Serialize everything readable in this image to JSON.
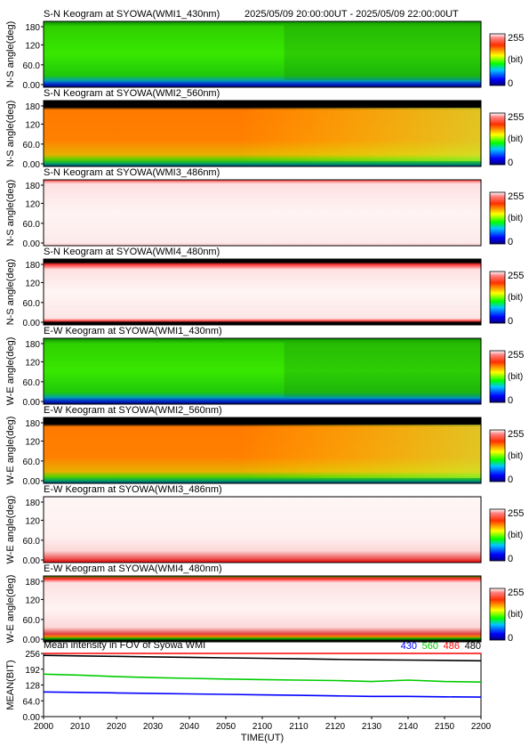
{
  "header": {
    "time_range": "2025/05/09 20:00:00UT - 2025/05/09 22:00:00UT"
  },
  "colorbar": {
    "max_label": "255",
    "unit_label": "(bit)",
    "min_label": "0"
  },
  "panels": [
    {
      "title": "S-N Keogram at SYOWA(WMI1_430nm)",
      "ylabel": "N-S angle(deg)",
      "scheme": "green",
      "yticks": [
        "180",
        "120",
        "60.0",
        "0.00"
      ]
    },
    {
      "title": "S-N Keogram at SYOWA(WMI2_560nm)",
      "ylabel": "N-S angle(deg)",
      "scheme": "orange",
      "yticks": [
        "180",
        "120",
        "60.0",
        "0.00"
      ]
    },
    {
      "title": "S-N Keogram at SYOWA(WMI3_486nm)",
      "ylabel": "N-S angle(deg)",
      "scheme": "pale",
      "yticks": [
        "180",
        "120",
        "60.0",
        "0.00"
      ]
    },
    {
      "title": "S-N Keogram at SYOWA(WMI4_480nm)",
      "ylabel": "N-S angle(deg)",
      "scheme": "pale_bands",
      "yticks": [
        "180",
        "120",
        "60.0",
        "0.00"
      ]
    },
    {
      "title": "E-W Keogram at SYOWA(WMI1_430nm)",
      "ylabel": "W-E angle(deg)",
      "scheme": "green",
      "yticks": [
        "180",
        "120",
        "60.0",
        "0.00"
      ]
    },
    {
      "title": "E-W Keogram at SYOWA(WMI2_560nm)",
      "ylabel": "W-E angle(deg)",
      "scheme": "orange",
      "yticks": [
        "180",
        "120",
        "60.0",
        "0.00"
      ]
    },
    {
      "title": "E-W Keogram at SYOWA(WMI3_486nm)",
      "ylabel": "W-E angle(deg)",
      "scheme": "pale_low",
      "yticks": [
        "180",
        "120",
        "60.0",
        "0.00"
      ]
    },
    {
      "title": "E-W Keogram at SYOWA(WMI4_480nm)",
      "ylabel": "W-E angle(deg)",
      "scheme": "pale_low_bands",
      "yticks": [
        "180",
        "120",
        "60.0",
        "0.00"
      ]
    }
  ],
  "chart_data": {
    "type": "line",
    "title": "Mean intensity in FOV of Syowa WMI",
    "ylabel": "MEAN(BIT)",
    "xlabel": "TIME(UT)",
    "ylim": [
      0,
      256
    ],
    "yticks": [
      "256",
      "192",
      "128",
      "64.0",
      "0.00"
    ],
    "ytick_values": [
      256,
      192,
      128,
      64,
      0
    ],
    "categories": [
      "2000",
      "2010",
      "2020",
      "2030",
      "2040",
      "2050",
      "2100",
      "2110",
      "2120",
      "2130",
      "2140",
      "2150",
      "2200"
    ],
    "x": [
      0,
      10,
      20,
      30,
      40,
      50,
      60,
      70,
      80,
      90,
      100,
      110,
      120
    ],
    "series": [
      {
        "name": "430",
        "color": "#0000ff",
        "values": [
          100,
          98,
          96,
          94,
          92,
          90,
          88,
          86,
          84,
          82,
          82,
          80,
          79
        ]
      },
      {
        "name": "560",
        "color": "#00cc00",
        "values": [
          172,
          168,
          162,
          158,
          155,
          152,
          150,
          148,
          146,
          142,
          148,
          142,
          140
        ]
      },
      {
        "name": "486",
        "color": "#ff0000",
        "values": [
          256,
          256,
          256,
          256,
          256,
          256,
          256,
          256,
          256,
          256,
          256,
          256,
          256
        ]
      },
      {
        "name": "480",
        "color": "#000000",
        "values": [
          248,
          246,
          244,
          242,
          240,
          238,
          236,
          234,
          232,
          230,
          229,
          228,
          226
        ]
      }
    ]
  }
}
